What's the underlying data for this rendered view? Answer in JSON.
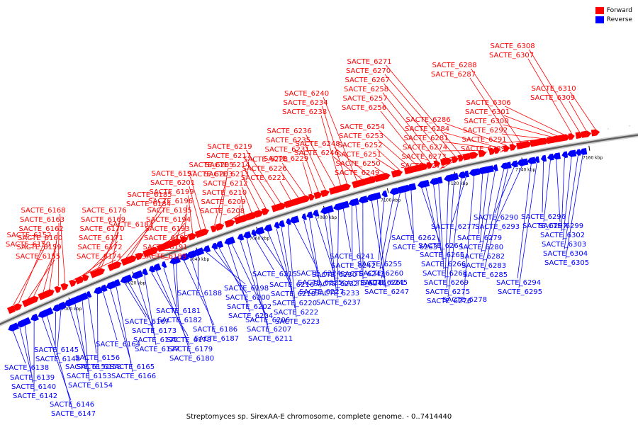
{
  "legend": {
    "forward_label": "Forward",
    "reverse_label": "Reverse",
    "forward_color": "#ff0000",
    "reverse_color": "#0000ff"
  },
  "caption": "Streptomyces sp. SirexAA-E chromosome, complete genome. - 0..7414440",
  "axis_ticks": [
    "7000 kbp",
    "7020 kbp",
    "7040 kbp",
    "7060 kbp",
    "7080 kbp",
    "7100 kbp",
    "7120 kbp",
    "7140 kbp",
    "7160 kbp"
  ],
  "forward_genes": [
    "SACTE_6150",
    "SACTE_6152",
    "SACTE_6155",
    "SACTE_6159",
    "SACTE_6160",
    "SACTE_6162",
    "SACTE_6163",
    "SACTE_6168",
    "SACTE_6174",
    "SACTE_6172",
    "SACTE_6171",
    "SACTE_6170",
    "SACTE_6169",
    "SACTE_6176",
    "SACTE_6183",
    "SACTE_6184",
    "SACTE_6185",
    "SACTE_6189",
    "SACTE_6191",
    "SACTE_6192",
    "SACTE_6193",
    "SACTE_6194",
    "SACTE_6195",
    "SACTE_6196",
    "SACTE_6199",
    "SACTE_6201",
    "SACTE_6197",
    "SACTE_6203",
    "SACTE_6205",
    "SACTE_6208",
    "SACTE_6209",
    "SACTE_6210",
    "SACTE_6212",
    "SACTE_6213",
    "SACTE_6214",
    "SACTE_6217",
    "SACTE_6219",
    "SACTE_6221",
    "SACTE_6226",
    "SACTE_6228",
    "SACTE_6229",
    "SACTE_6231",
    "SACTE_6235",
    "SACTE_6236",
    "SACTE_6238",
    "SACTE_6234",
    "SACTE_6240",
    "SACTE_6246",
    "SACTE_6248",
    "SACTE_6249",
    "SACTE_6250",
    "SACTE_6251",
    "SACTE_6252",
    "SACTE_6253",
    "SACTE_6254",
    "SACTE_6256",
    "SACTE_6257",
    "SACTE_6258",
    "SACTE_6267",
    "SACTE_6270",
    "SACTE_6271",
    "SACTE_6272",
    "SACTE_6273",
    "SACTE_6274",
    "SACTE_6281",
    "SACTE_6284",
    "SACTE_6286",
    "SACTE_6287",
    "SACTE_6288",
    "SACTE_6289",
    "SACTE_6291",
    "SACTE_6292",
    "SACTE_6300",
    "SACTE_6301",
    "SACTE_6306",
    "SACTE_6307",
    "SACTE_6308",
    "SACTE_6309",
    "SACTE_6310"
  ],
  "reverse_genes": [
    "SACTE_6138",
    "SACTE_6139",
    "SACTE_6140",
    "SACTE_6142",
    "SACTE_6146",
    "SACTE_6147",
    "SACTE_6145",
    "SACTE_6148",
    "SACTE_6151",
    "SACTE_6153",
    "SACTE_6154",
    "SACTE_6156",
    "SACTE_6158",
    "SACTE_6164",
    "SACTE_6165",
    "SACTE_6166",
    "SACTE_6167",
    "SACTE_6173",
    "SACTE_6175",
    "SACTE_6177",
    "SACTE_6178",
    "SACTE_6179",
    "SACTE_6180",
    "SACTE_6181",
    "SACTE_6182",
    "SACTE_6186",
    "SACTE_6187",
    "SACTE_6188",
    "SACTE_6198",
    "SACTE_6200",
    "SACTE_6202",
    "SACTE_6204",
    "SACTE_6206",
    "SACTE_6207",
    "SACTE_6211",
    "SACTE_6215",
    "SACTE_6216",
    "SACTE_6218",
    "SACTE_6220",
    "SACTE_6222",
    "SACTE_6223",
    "SACTE_6224",
    "SACTE_6225",
    "SACTE_6227",
    "SACTE_6230",
    "SACTE_6232",
    "SACTE_6233",
    "SACTE_6237",
    "SACTE_6241",
    "SACTE_6242",
    "SACTE_6243",
    "SACTE_6244",
    "SACTE_6245",
    "SACTE_6247",
    "SACTE_6255",
    "SACTE_6260",
    "SACTE_6261",
    "SACTE_6262",
    "SACTE_6263",
    "SACTE_6264",
    "SACTE_6265",
    "SACTE_6266",
    "SACTE_6268",
    "SACTE_6269",
    "SACTE_6275",
    "SACTE_6276",
    "SACTE_6277",
    "SACTE_6278",
    "SACTE_6279",
    "SACTE_6280",
    "SACTE_6282",
    "SACTE_6283",
    "SACTE_6285",
    "SACTE_6290",
    "SACTE_6293",
    "SACTE_6294",
    "SACTE_6295",
    "SACTE_6296",
    "SACTE_6297",
    "SACTE_6299",
    "SACTE_6302",
    "SACTE_6303",
    "SACTE_6304",
    "SACTE_6305"
  ]
}
